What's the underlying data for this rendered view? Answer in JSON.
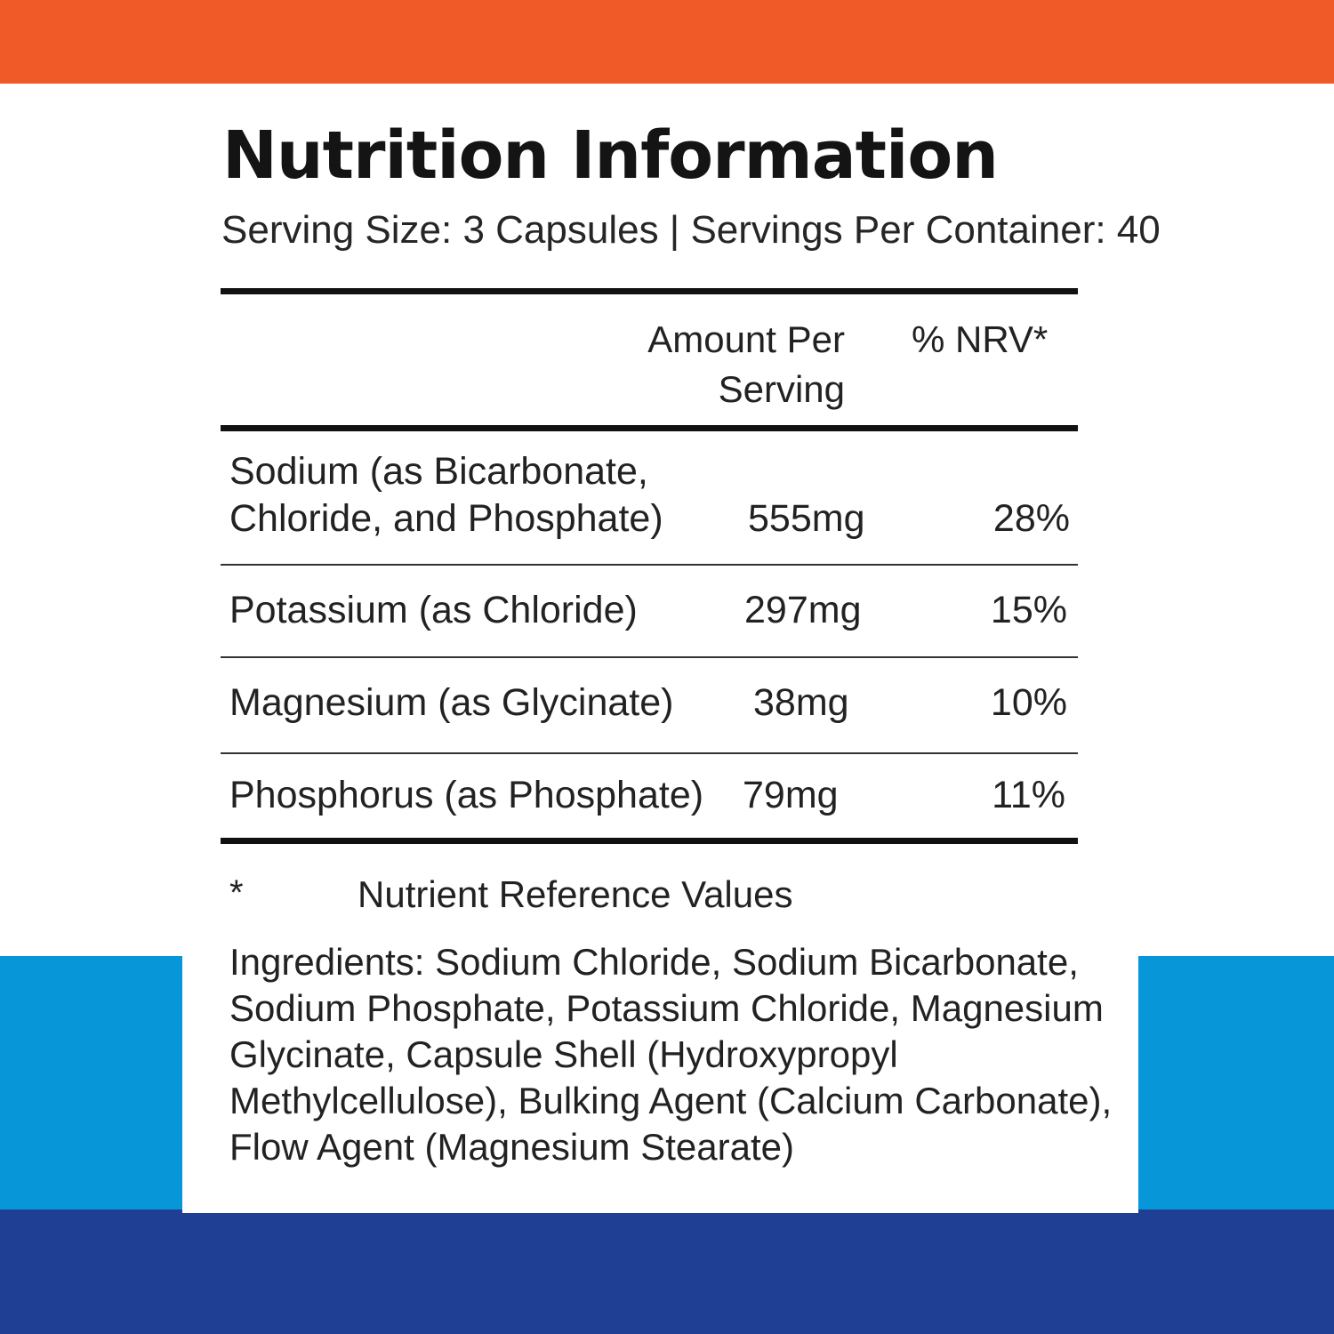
{
  "colors": {
    "orange": "#f05a28",
    "light_blue": "#0796d8",
    "navy": "#1e3f93"
  },
  "label": {
    "title": "Nutrition Information",
    "serving_line": "Serving Size: 3 Capsules | Servings Per Container: 40",
    "columns": {
      "amount_line1": "Amount Per",
      "amount_line2": "Serving",
      "nrv": "% NRV*"
    },
    "rows": [
      {
        "name_line1": "Sodium (as Bicarbonate,",
        "name_line2": "Chloride, and Phosphate)",
        "amount": "555mg",
        "nrv": "28%"
      },
      {
        "name": "Potassium (as Chloride)",
        "amount": "297mg",
        "nrv": "15%"
      },
      {
        "name": "Magnesium (as Glycinate)",
        "amount": "38mg",
        "nrv": "10%"
      },
      {
        "name": "Phosphorus (as Phosphate)",
        "amount": "79mg",
        "nrv": "11%"
      }
    ],
    "footnote_symbol": "*",
    "footnote_text": "Nutrient Reference Values",
    "ingredients": "Ingredients: Sodium Chloride, Sodium Bicarbonate, Sodium Phosphate, Potassium Chloride, Magnesium Glycinate, Capsule Shell (Hydroxypropyl Methylcellulose), Bulking Agent (Calcium Carbonate), Flow Agent (Magnesium Stearate)"
  }
}
